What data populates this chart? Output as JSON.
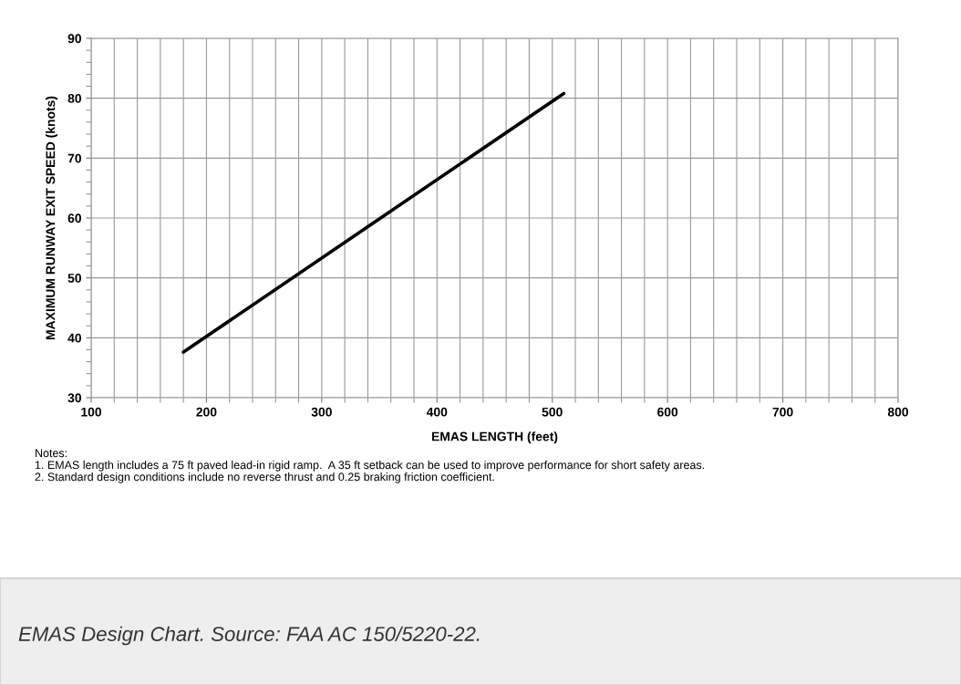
{
  "chart_data": {
    "type": "line",
    "xlabel": "EMAS LENGTH (feet)",
    "ylabel": "MAXIMUM RUNWAY EXIT SPEED (knots)",
    "x": [
      180,
      510
    ],
    "series": [
      {
        "color": "#000000",
        "values": [
          37.6,
          80.8
        ]
      }
    ],
    "xlim": [
      100,
      800
    ],
    "ylim": [
      30,
      90
    ],
    "xticks": [
      100,
      200,
      300,
      400,
      500,
      600,
      700,
      800
    ],
    "yticks": [
      30,
      40,
      50,
      60,
      70,
      80,
      90
    ],
    "grid": true,
    "marker": "none",
    "line_style": "solid",
    "legend": false,
    "annotations": [
      "Notes:\n1. EMAS length includes a 75 ft paved lead-in rigid ramp.  A 35 ft setback can be used to improve performance for short safety areas.\n2. Standard design conditions include no reverse thrust and 0.25 braking friction coefficient.",
      "EMAS Design Chart. Source: FAA AC 150/5220-22."
    ]
  }
}
